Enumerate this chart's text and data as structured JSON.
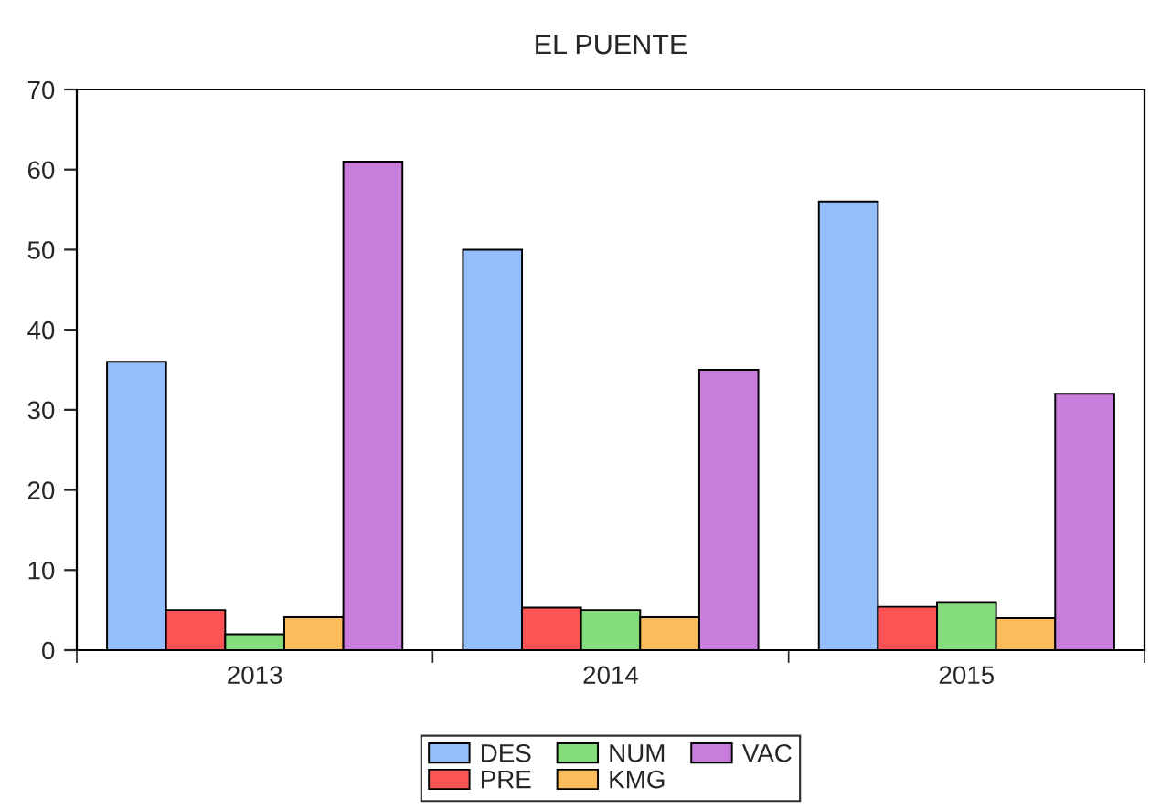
{
  "chart_data": {
    "type": "bar",
    "title": "EL PUENTE",
    "categories": [
      "2013",
      "2014",
      "2015"
    ],
    "series": [
      {
        "name": "DES",
        "color": "#94bdfc",
        "values": [
          36,
          50,
          56
        ]
      },
      {
        "name": "PRE",
        "color": "#fc5454",
        "values": [
          5,
          5.3,
          5.4
        ]
      },
      {
        "name": "NUM",
        "color": "#84dc7c",
        "values": [
          2,
          5,
          6
        ]
      },
      {
        "name": "KMG",
        "color": "#fcbc5c",
        "values": [
          4.1,
          4.1,
          4
        ]
      },
      {
        "name": "VAC",
        "color": "#c87ddc",
        "values": [
          61,
          35,
          32
        ]
      }
    ],
    "ylim": [
      0,
      70
    ],
    "yticks": [
      0,
      10,
      20,
      30,
      40,
      50,
      60,
      70
    ],
    "grid": false,
    "legend": "bottom"
  }
}
